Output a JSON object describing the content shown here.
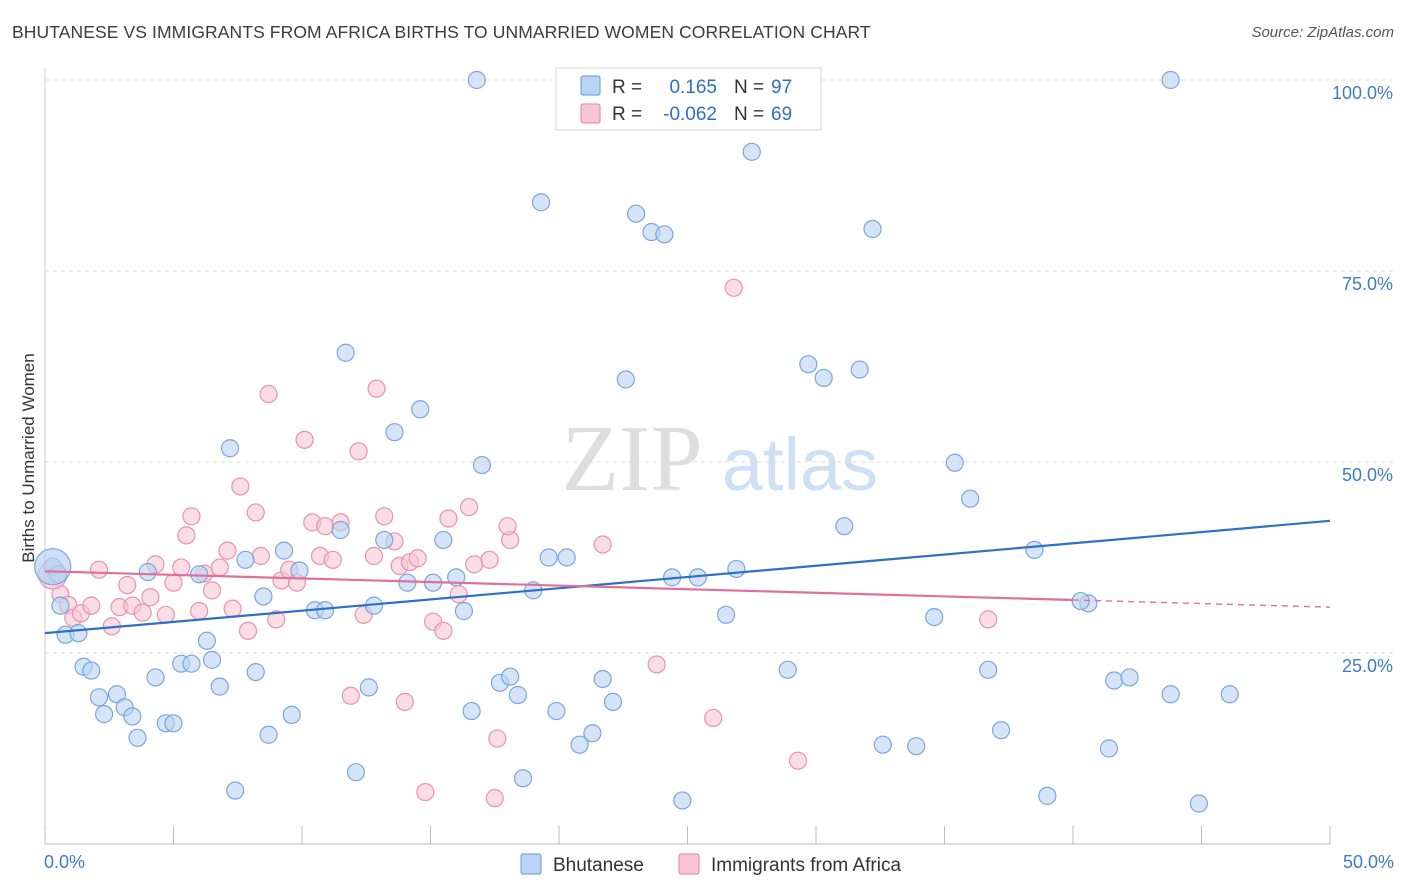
{
  "header": {
    "title": "BHUTANESE VS IMMIGRANTS FROM AFRICA BIRTHS TO UNMARRIED WOMEN CORRELATION CHART",
    "source": "Source: ZipAtlas.com"
  },
  "watermark": {
    "zip": "ZIP",
    "atlas": "atlas"
  },
  "legend": {
    "r_label": "R =",
    "n_label": "N =",
    "rows": [
      {
        "r": "0.165",
        "n": "97"
      },
      {
        "r": "-0.062",
        "n": "69"
      }
    ]
  },
  "colors": {
    "blue_fill": "#b9d3f2",
    "blue_stroke": "#7aa6de",
    "blue_line": "#2d70c8",
    "pink_fill": "#f7c6d4",
    "pink_stroke": "#e993ad",
    "pink_line": "#e0709a"
  },
  "chart_data": {
    "type": "scatter",
    "title": "BHUTANESE VS IMMIGRANTS FROM AFRICA BIRTHS TO UNMARRIED WOMEN CORRELATION CHART",
    "ylabel": "Births to Unmarried Women",
    "xlabel": "",
    "xlim": [
      0,
      50
    ],
    "ylim": [
      0,
      100
    ],
    "x_tick_labels": [
      "0.0%",
      "50.0%"
    ],
    "y_ticks": [
      {
        "value": 25,
        "label": "25.0%"
      },
      {
        "value": 50,
        "label": "50.0%"
      },
      {
        "value": 75,
        "label": "75.0%"
      },
      {
        "value": 100,
        "label": "100.0%"
      }
    ],
    "grid": true,
    "legend_position": "top-center",
    "series": [
      {
        "name": "Bhutanese",
        "r": 0.165,
        "n": 97,
        "trend": {
          "x": [
            0,
            50
          ],
          "y": [
            27.6,
            42.3
          ],
          "dashed_from": null
        },
        "points": [
          [
            0.3,
            36.3
          ],
          [
            0.5,
            35.3
          ],
          [
            0.6,
            31.2
          ],
          [
            0.8,
            27.4
          ],
          [
            1.3,
            27.6
          ],
          [
            1.5,
            23.2
          ],
          [
            1.8,
            22.7
          ],
          [
            2.1,
            19.2
          ],
          [
            2.3,
            17.0
          ],
          [
            2.8,
            19.6
          ],
          [
            3.1,
            17.9
          ],
          [
            3.4,
            16.7
          ],
          [
            3.6,
            13.9
          ],
          [
            4.0,
            35.6
          ],
          [
            4.3,
            21.8
          ],
          [
            4.7,
            15.8
          ],
          [
            5.0,
            15.8
          ],
          [
            5.3,
            23.6
          ],
          [
            5.7,
            23.6
          ],
          [
            6.0,
            35.3
          ],
          [
            6.3,
            26.6
          ],
          [
            6.5,
            24.1
          ],
          [
            6.8,
            20.6
          ],
          [
            7.2,
            51.8
          ],
          [
            7.4,
            7.0
          ],
          [
            7.8,
            37.2
          ],
          [
            8.2,
            22.5
          ],
          [
            8.5,
            32.4
          ],
          [
            8.7,
            14.3
          ],
          [
            9.3,
            38.4
          ],
          [
            9.6,
            16.9
          ],
          [
            9.9,
            35.8
          ],
          [
            10.5,
            30.6
          ],
          [
            10.9,
            30.6
          ],
          [
            11.5,
            41.1
          ],
          [
            11.7,
            64.3
          ],
          [
            12.1,
            9.4
          ],
          [
            12.6,
            20.5
          ],
          [
            12.8,
            31.2
          ],
          [
            13.2,
            39.8
          ],
          [
            13.6,
            53.9
          ],
          [
            14.1,
            34.2
          ],
          [
            14.6,
            56.9
          ],
          [
            15.1,
            34.2
          ],
          [
            15.5,
            39.8
          ],
          [
            16.0,
            34.9
          ],
          [
            16.3,
            30.5
          ],
          [
            16.6,
            17.4
          ],
          [
            17.0,
            49.6
          ],
          [
            17.7,
            21.1
          ],
          [
            18.1,
            21.9
          ],
          [
            18.4,
            19.5
          ],
          [
            18.6,
            8.6
          ],
          [
            19.0,
            33.2
          ],
          [
            19.3,
            84.0
          ],
          [
            19.6,
            37.5
          ],
          [
            19.9,
            17.4
          ],
          [
            20.3,
            37.5
          ],
          [
            20.8,
            13.0
          ],
          [
            21.3,
            14.5
          ],
          [
            21.7,
            21.6
          ],
          [
            22.1,
            18.6
          ],
          [
            22.6,
            60.8
          ],
          [
            23.0,
            82.5
          ],
          [
            23.6,
            80.1
          ],
          [
            24.1,
            79.8
          ],
          [
            24.4,
            34.9
          ],
          [
            24.8,
            5.7
          ],
          [
            25.4,
            34.9
          ],
          [
            26.5,
            30.0
          ],
          [
            26.9,
            36.0
          ],
          [
            27.5,
            90.6
          ],
          [
            28.9,
            22.8
          ],
          [
            29.7,
            62.8
          ],
          [
            30.3,
            61.0
          ],
          [
            31.1,
            41.6
          ],
          [
            31.7,
            62.1
          ],
          [
            32.2,
            80.5
          ],
          [
            32.6,
            13.0
          ],
          [
            33.9,
            12.8
          ],
          [
            34.6,
            29.7
          ],
          [
            35.4,
            49.9
          ],
          [
            36.0,
            45.2
          ],
          [
            36.7,
            22.8
          ],
          [
            37.2,
            14.9
          ],
          [
            38.5,
            38.5
          ],
          [
            39.0,
            6.3
          ],
          [
            40.6,
            31.5
          ],
          [
            40.3,
            31.8
          ],
          [
            41.4,
            12.5
          ],
          [
            41.6,
            21.4
          ],
          [
            42.2,
            21.8
          ],
          [
            43.8,
            19.6
          ],
          [
            44.9,
            5.3
          ],
          [
            46.1,
            19.6
          ],
          [
            16.8,
            100
          ],
          [
            43.8,
            100
          ]
        ]
      },
      {
        "name": "Immigrants from Africa",
        "r": -0.062,
        "n": 69,
        "trend": {
          "x": [
            0,
            50
          ],
          "y": [
            35.7,
            31.0
          ],
          "dashed_from": 40
        },
        "points": [
          [
            0.3,
            35.2
          ],
          [
            0.6,
            32.7
          ],
          [
            0.9,
            31.3
          ],
          [
            1.1,
            29.6
          ],
          [
            1.4,
            30.2
          ],
          [
            1.8,
            31.2
          ],
          [
            2.1,
            35.9
          ],
          [
            2.6,
            28.5
          ],
          [
            2.9,
            31.0
          ],
          [
            3.2,
            33.9
          ],
          [
            3.4,
            31.2
          ],
          [
            3.8,
            30.3
          ],
          [
            4.1,
            32.3
          ],
          [
            4.3,
            36.6
          ],
          [
            4.7,
            30.0
          ],
          [
            5.0,
            34.2
          ],
          [
            5.3,
            36.2
          ],
          [
            5.5,
            40.4
          ],
          [
            5.7,
            42.9
          ],
          [
            6.0,
            30.5
          ],
          [
            6.2,
            35.4
          ],
          [
            6.5,
            33.2
          ],
          [
            6.8,
            36.2
          ],
          [
            7.1,
            38.4
          ],
          [
            7.3,
            30.8
          ],
          [
            7.6,
            46.8
          ],
          [
            7.9,
            27.9
          ],
          [
            8.2,
            43.4
          ],
          [
            8.4,
            37.7
          ],
          [
            8.7,
            58.9
          ],
          [
            9.0,
            29.4
          ],
          [
            9.2,
            34.5
          ],
          [
            9.5,
            35.9
          ],
          [
            9.8,
            34.2
          ],
          [
            10.1,
            52.9
          ],
          [
            10.4,
            42.1
          ],
          [
            10.7,
            37.7
          ],
          [
            10.9,
            41.6
          ],
          [
            11.2,
            37.2
          ],
          [
            11.5,
            42.1
          ],
          [
            11.9,
            19.4
          ],
          [
            12.2,
            51.4
          ],
          [
            12.4,
            30.0
          ],
          [
            12.8,
            37.7
          ],
          [
            12.9,
            59.6
          ],
          [
            13.2,
            42.9
          ],
          [
            13.6,
            39.6
          ],
          [
            13.8,
            36.4
          ],
          [
            14.0,
            18.6
          ],
          [
            14.2,
            36.9
          ],
          [
            14.5,
            37.4
          ],
          [
            14.8,
            6.8
          ],
          [
            15.1,
            29.1
          ],
          [
            15.5,
            27.9
          ],
          [
            15.7,
            42.6
          ],
          [
            16.1,
            32.7
          ],
          [
            16.5,
            44.1
          ],
          [
            16.7,
            36.6
          ],
          [
            17.3,
            37.2
          ],
          [
            17.6,
            13.8
          ],
          [
            18.1,
            39.8
          ],
          [
            21.7,
            39.2
          ],
          [
            17.5,
            6.0
          ],
          [
            23.8,
            23.5
          ],
          [
            26.0,
            16.5
          ],
          [
            26.8,
            72.8
          ],
          [
            29.3,
            10.9
          ],
          [
            36.7,
            29.4
          ],
          [
            18.0,
            41.6
          ]
        ]
      }
    ]
  },
  "bottom_legend": {
    "items": [
      "Bhutanese",
      "Immigrants from Africa"
    ]
  }
}
